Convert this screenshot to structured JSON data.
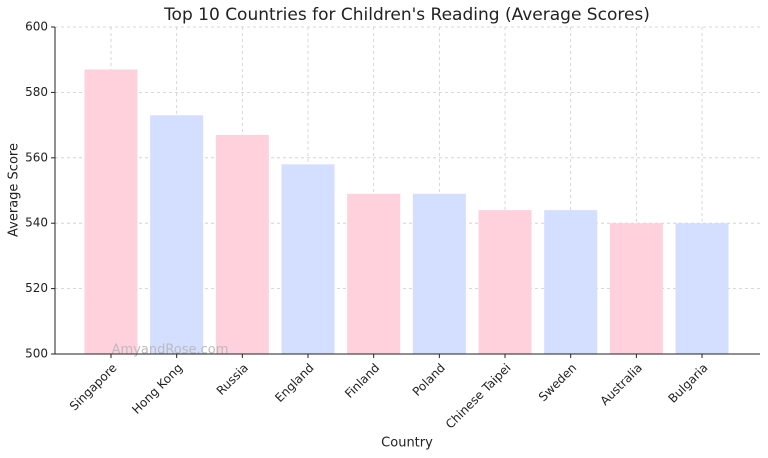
{
  "chart_data": {
    "type": "bar",
    "title": "Top 10 Countries for Children's Reading (Average Scores)",
    "x_label": "Country",
    "y_label": "Average Score",
    "annotation": "AmyandRose.com",
    "categories": [
      "Singapore",
      "Hong Kong",
      "Russia",
      "England",
      "Finland",
      "Poland",
      "Chinese Taipei",
      "Sweden",
      "Australia",
      "Bulgaria"
    ],
    "values": [
      587,
      573,
      567,
      558,
      549,
      549,
      544,
      544,
      540,
      540
    ],
    "colors": [
      "#ffd1dc",
      "#d4deff",
      "#ffd1dc",
      "#d4deff",
      "#ffd1dc",
      "#d4deff",
      "#ffd1dc",
      "#d4deff",
      "#ffd1dc",
      "#d4deff"
    ],
    "ylim": [
      500,
      600
    ],
    "yticks": [
      500,
      520,
      540,
      560,
      580,
      600
    ],
    "grid": true
  }
}
